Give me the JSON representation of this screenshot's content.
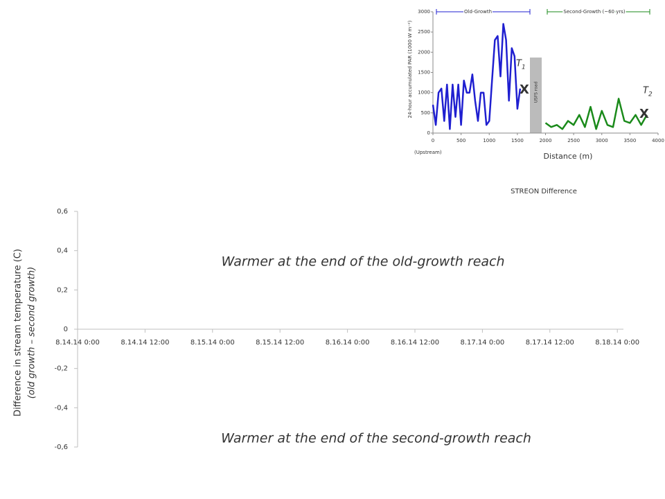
{
  "chart_data": [
    {
      "type": "line",
      "title": "STREON Difference",
      "y_label": "Difference in stream temperature (C)",
      "y_label_sub": "(old growth – second growth)",
      "categories": [
        "8.14.14 0:00",
        "8.14.14 12:00",
        "8.15.14 0:00",
        "8.15.14 12:00",
        "8.16.14 0:00",
        "8.16.14 12:00",
        "8.17.14 0:00",
        "8.17.14 12:00",
        "8.18.14 0:00"
      ],
      "ylim": [
        -0.6,
        0.6
      ],
      "yticks": [
        {
          "value": -0.6,
          "label": "-0,6"
        },
        {
          "value": -0.4,
          "label": "-0,4"
        },
        {
          "value": -0.2,
          "label": "-0,2"
        },
        0,
        {
          "value": 0.2,
          "label": "0,2"
        },
        {
          "value": 0.4,
          "label": "0,4"
        },
        {
          "value": 0.6,
          "label": "0,6"
        }
      ],
      "annotations": [
        "Warmer at the end of the old-growth reach",
        "Warmer at the end of the second-growth reach"
      ],
      "axis_color": "#bfbfbf"
    },
    {
      "type": "line",
      "y_label": "24-hour accumulated PAR (1000 W m⁻²)",
      "x_label": "Distance (m)",
      "x_note": "(Upstream)",
      "regions": [
        "Old-Growth",
        "Second-Growth (~60 yrs)"
      ],
      "road_label": "USFS road",
      "sites": [
        {
          "name": "T",
          "sub": "1",
          "mark": "X"
        },
        {
          "name": "T",
          "sub": "2",
          "mark": "X"
        }
      ],
      "xlim": [
        0,
        4000
      ],
      "xticks": [
        0,
        500,
        1000,
        1500,
        2000,
        2500,
        3000,
        3500,
        4000
      ],
      "ylim": [
        0,
        3000
      ],
      "yticks": [
        0,
        500,
        1000,
        1500,
        2000,
        2500,
        3000
      ],
      "series": [
        {
          "name": "Old-Growth",
          "color": "#1f1fd0",
          "x": [
            0,
            50,
            100,
            150,
            200,
            250,
            300,
            350,
            400,
            450,
            500,
            550,
            600,
            650,
            700,
            750,
            800,
            850,
            900,
            950,
            1000,
            1050,
            1100,
            1150,
            1200,
            1250,
            1300,
            1350,
            1400,
            1450,
            1500,
            1550
          ],
          "values": [
            700,
            200,
            1000,
            1100,
            300,
            1200,
            100,
            1200,
            400,
            1200,
            200,
            1300,
            1000,
            1000,
            1450,
            800,
            300,
            1000,
            1000,
            200,
            300,
            1300,
            2300,
            2400,
            1400,
            2700,
            2300,
            800,
            2100,
            1900,
            600,
            1100
          ]
        },
        {
          "name": "Second-Growth (~60 yrs)",
          "color": "#1a8a1a",
          "x": [
            2000,
            2100,
            2200,
            2300,
            2400,
            2500,
            2600,
            2700,
            2800,
            2900,
            3000,
            3100,
            3200,
            3300,
            3400,
            3500,
            3600,
            3700,
            3800
          ],
          "values": [
            250,
            150,
            200,
            100,
            300,
            200,
            450,
            150,
            650,
            100,
            550,
            200,
            150,
            850,
            300,
            250,
            450,
            200,
            450
          ]
        }
      ]
    }
  ]
}
